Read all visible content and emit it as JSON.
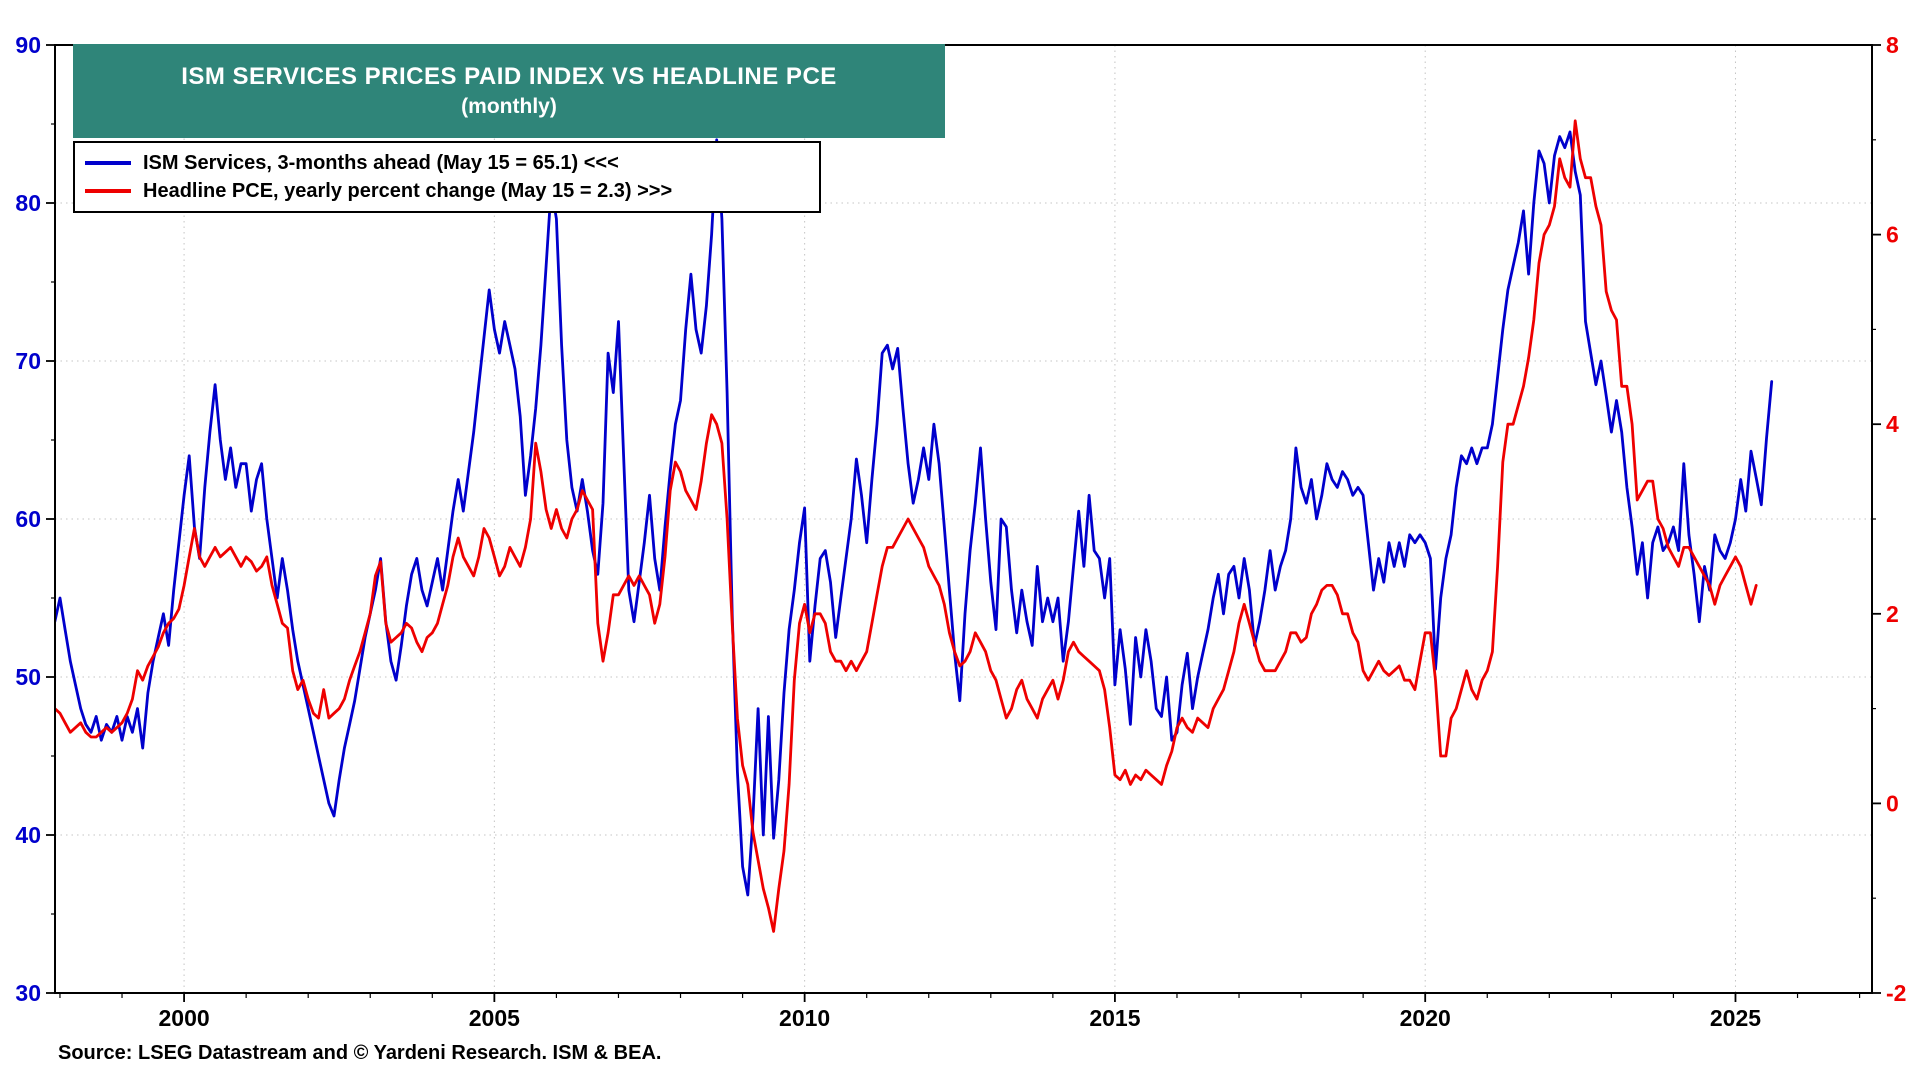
{
  "header": {
    "title": "ISM SERVICES PRICES PAID INDEX VS HEADLINE PCE",
    "subtitle": "(monthly)",
    "box_color": "#2F8579"
  },
  "legend": [
    {
      "label": "ISM Services, 3-months ahead (May 15 = 65.1) <<<",
      "color": "#0000CC"
    },
    {
      "label": "Headline PCE, yearly percent change (May 15 = 2.3) >>>",
      "color": "#EE0000"
    }
  ],
  "source": "Source: LSEG Datastream and © Yardeni Research. ISM & BEA.",
  "chart_data": {
    "type": "line",
    "title": "ISM Services Prices Paid Index vs Headline PCE (monthly)",
    "grid": "dotted",
    "x_domain": [
      1997.92,
      2027.2
    ],
    "x_ticks": [
      2000,
      2005,
      2010,
      2015,
      2020,
      2025
    ],
    "left_axis": {
      "range": [
        30,
        90
      ],
      "ticks": [
        30,
        40,
        50,
        60,
        70,
        80,
        90
      ],
      "color": "#0000CC"
    },
    "right_axis": {
      "range": [
        -2,
        8
      ],
      "ticks": [
        -2,
        0,
        2,
        4,
        6,
        8
      ],
      "color": "#EE0000"
    },
    "series": [
      {
        "name": "ISM Services, 3-months ahead",
        "axis": "left",
        "color": "#0000CC",
        "start": 1997.9167,
        "step_months": 1,
        "values": [
          53.5,
          55,
          53,
          51,
          49.5,
          48,
          47,
          46.5,
          47.5,
          46,
          47,
          46.5,
          47.5,
          46,
          47.5,
          46.5,
          48,
          45.5,
          49,
          51,
          52.5,
          54,
          52,
          55.5,
          58.5,
          61.5,
          64,
          59.5,
          57.5,
          62,
          65.5,
          68.5,
          65,
          62.5,
          64.5,
          62,
          63.5,
          63.5,
          60.5,
          62.5,
          63.5,
          60,
          57.5,
          55,
          57.5,
          55.5,
          53,
          51,
          49.5,
          48,
          46.5,
          45,
          43.5,
          42,
          41.2,
          43.5,
          45.5,
          47,
          48.5,
          50.5,
          52.5,
          54,
          55.5,
          57.5,
          53.5,
          51,
          49.8,
          52,
          54.5,
          56.5,
          57.5,
          55.5,
          54.5,
          56,
          57.5,
          55.5,
          58,
          60.5,
          62.5,
          60.5,
          63,
          65.5,
          68.5,
          71.5,
          74.5,
          72,
          70.5,
          72.5,
          71,
          69.5,
          66.5,
          61.5,
          64,
          67,
          71,
          76,
          81,
          79,
          71,
          65,
          62,
          60.5,
          62.5,
          60.5,
          58,
          56.5,
          61,
          70.5,
          68,
          72.5,
          64,
          55.5,
          53.5,
          56,
          58.5,
          61.5,
          57.5,
          55.5,
          59.5,
          63,
          66,
          67.5,
          72,
          75.5,
          72,
          70.5,
          73.5,
          78,
          84,
          79,
          68,
          54,
          44,
          38,
          36.2,
          41,
          48,
          40,
          47.5,
          39.8,
          43.5,
          49,
          53,
          55.5,
          58.5,
          60.7,
          51,
          54.5,
          57.5,
          58,
          56,
          52.5,
          55,
          57.5,
          60,
          63.8,
          61.5,
          58.5,
          62.5,
          66,
          70.5,
          71,
          69.5,
          70.8,
          67,
          63.5,
          61,
          62.5,
          64.5,
          62.5,
          66,
          63.5,
          59.5,
          55.5,
          51.5,
          48.5,
          54,
          58,
          61,
          64.5,
          60,
          56,
          53,
          60,
          59.5,
          55.5,
          52.8,
          55.5,
          53.5,
          52,
          57,
          53.5,
          55,
          53.5,
          55,
          51,
          53.5,
          57,
          60.5,
          57,
          61.5,
          58,
          57.5,
          55,
          57.5,
          49.5,
          53,
          50.5,
          47,
          52.5,
          50,
          53,
          51,
          48,
          47.5,
          50,
          46,
          46.5,
          49.5,
          51.5,
          48,
          50,
          51.5,
          53,
          55,
          56.5,
          54,
          56.5,
          57,
          55,
          57.5,
          55.5,
          52,
          53.5,
          55.5,
          58,
          55.5,
          57,
          58,
          60,
          64.5,
          62,
          61,
          62.5,
          60,
          61.5,
          63.5,
          62.5,
          62,
          63,
          62.5,
          61.5,
          62,
          61.5,
          58.5,
          55.5,
          57.5,
          56,
          58.5,
          57,
          58.5,
          57,
          59,
          58.5,
          59,
          58.5,
          57.5,
          50.5,
          55,
          57.5,
          59,
          62,
          64,
          63.5,
          64.5,
          63.5,
          64.5,
          64.5,
          66,
          69,
          72,
          74.5,
          76,
          77.5,
          79.5,
          75.5,
          80,
          83.3,
          82.5,
          80,
          83,
          84.2,
          83.5,
          84.5,
          82,
          80.5,
          72.5,
          70.5,
          68.5,
          70,
          67.8,
          65.5,
          67.5,
          65.5,
          62,
          59.5,
          56.5,
          58.5,
          55,
          58.5,
          59.5,
          58,
          58.5,
          59.5,
          58,
          63.5,
          59,
          56.5,
          53.5,
          57,
          55.5,
          59,
          58,
          57.5,
          58.5,
          60,
          62.5,
          60.5,
          64.3,
          62.6,
          60.9,
          65.1,
          68.7
        ]
      },
      {
        "name": "Headline PCE, yearly percent change",
        "axis": "right",
        "color": "#EE0000",
        "start": 1997.9167,
        "step_months": 1,
        "values": [
          1.0,
          0.95,
          0.85,
          0.75,
          0.8,
          0.85,
          0.75,
          0.7,
          0.7,
          0.75,
          0.8,
          0.75,
          0.8,
          0.85,
          0.95,
          1.1,
          1.4,
          1.3,
          1.45,
          1.55,
          1.65,
          1.8,
          1.9,
          1.95,
          2.05,
          2.3,
          2.6,
          2.9,
          2.6,
          2.5,
          2.6,
          2.7,
          2.6,
          2.65,
          2.7,
          2.6,
          2.5,
          2.6,
          2.55,
          2.45,
          2.5,
          2.6,
          2.3,
          2.1,
          1.9,
          1.85,
          1.4,
          1.2,
          1.3,
          1.1,
          0.95,
          0.9,
          1.2,
          0.9,
          0.95,
          1.0,
          1.1,
          1.3,
          1.45,
          1.6,
          1.8,
          2.0,
          2.4,
          2.55,
          1.9,
          1.7,
          1.75,
          1.8,
          1.9,
          1.85,
          1.7,
          1.6,
          1.75,
          1.8,
          1.9,
          2.1,
          2.3,
          2.6,
          2.8,
          2.6,
          2.5,
          2.4,
          2.6,
          2.9,
          2.8,
          2.6,
          2.4,
          2.5,
          2.7,
          2.6,
          2.5,
          2.7,
          3.0,
          3.8,
          3.5,
          3.1,
          2.9,
          3.1,
          2.9,
          2.8,
          3.0,
          3.1,
          3.3,
          3.2,
          3.1,
          1.9,
          1.5,
          1.8,
          2.2,
          2.2,
          2.3,
          2.4,
          2.3,
          2.4,
          2.3,
          2.2,
          1.9,
          2.1,
          2.6,
          3.3,
          3.6,
          3.5,
          3.3,
          3.2,
          3.1,
          3.4,
          3.8,
          4.1,
          4.0,
          3.8,
          3.0,
          1.9,
          0.9,
          0.4,
          0.2,
          -0.3,
          -0.6,
          -0.9,
          -1.1,
          -1.35,
          -0.9,
          -0.5,
          0.2,
          1.3,
          1.9,
          2.1,
          1.8,
          2.0,
          2.0,
          1.9,
          1.6,
          1.5,
          1.5,
          1.4,
          1.5,
          1.4,
          1.5,
          1.6,
          1.9,
          2.2,
          2.5,
          2.7,
          2.7,
          2.8,
          2.9,
          3.0,
          2.9,
          2.8,
          2.7,
          2.5,
          2.4,
          2.3,
          2.1,
          1.8,
          1.6,
          1.45,
          1.5,
          1.6,
          1.8,
          1.7,
          1.6,
          1.4,
          1.3,
          1.1,
          0.9,
          1.0,
          1.2,
          1.3,
          1.1,
          1.0,
          0.9,
          1.1,
          1.2,
          1.3,
          1.1,
          1.3,
          1.6,
          1.7,
          1.6,
          1.55,
          1.5,
          1.45,
          1.4,
          1.2,
          0.8,
          0.3,
          0.25,
          0.35,
          0.2,
          0.3,
          0.25,
          0.35,
          0.3,
          0.25,
          0.2,
          0.4,
          0.55,
          0.8,
          0.9,
          0.8,
          0.75,
          0.9,
          0.85,
          0.8,
          1.0,
          1.1,
          1.2,
          1.4,
          1.6,
          1.9,
          2.1,
          1.9,
          1.7,
          1.5,
          1.4,
          1.4,
          1.4,
          1.5,
          1.6,
          1.8,
          1.8,
          1.7,
          1.75,
          2.0,
          2.1,
          2.25,
          2.3,
          2.3,
          2.2,
          2.0,
          2.0,
          1.8,
          1.7,
          1.4,
          1.3,
          1.4,
          1.5,
          1.4,
          1.35,
          1.4,
          1.45,
          1.3,
          1.3,
          1.2,
          1.5,
          1.8,
          1.8,
          1.3,
          0.5,
          0.5,
          0.9,
          1.0,
          1.2,
          1.4,
          1.2,
          1.1,
          1.3,
          1.4,
          1.6,
          2.5,
          3.6,
          4.0,
          4.0,
          4.2,
          4.4,
          4.7,
          5.1,
          5.7,
          6.0,
          6.1,
          6.3,
          6.8,
          6.6,
          6.5,
          7.2,
          6.8,
          6.6,
          6.6,
          6.3,
          6.1,
          5.4,
          5.2,
          5.1,
          4.4,
          4.4,
          4.0,
          3.2,
          3.3,
          3.4,
          3.4,
          3.0,
          2.9,
          2.7,
          2.6,
          2.5,
          2.7,
          2.7,
          2.6,
          2.5,
          2.4,
          2.3,
          2.1,
          2.3,
          2.4,
          2.5,
          2.6,
          2.5,
          2.3,
          2.1,
          2.3
        ]
      }
    ]
  }
}
